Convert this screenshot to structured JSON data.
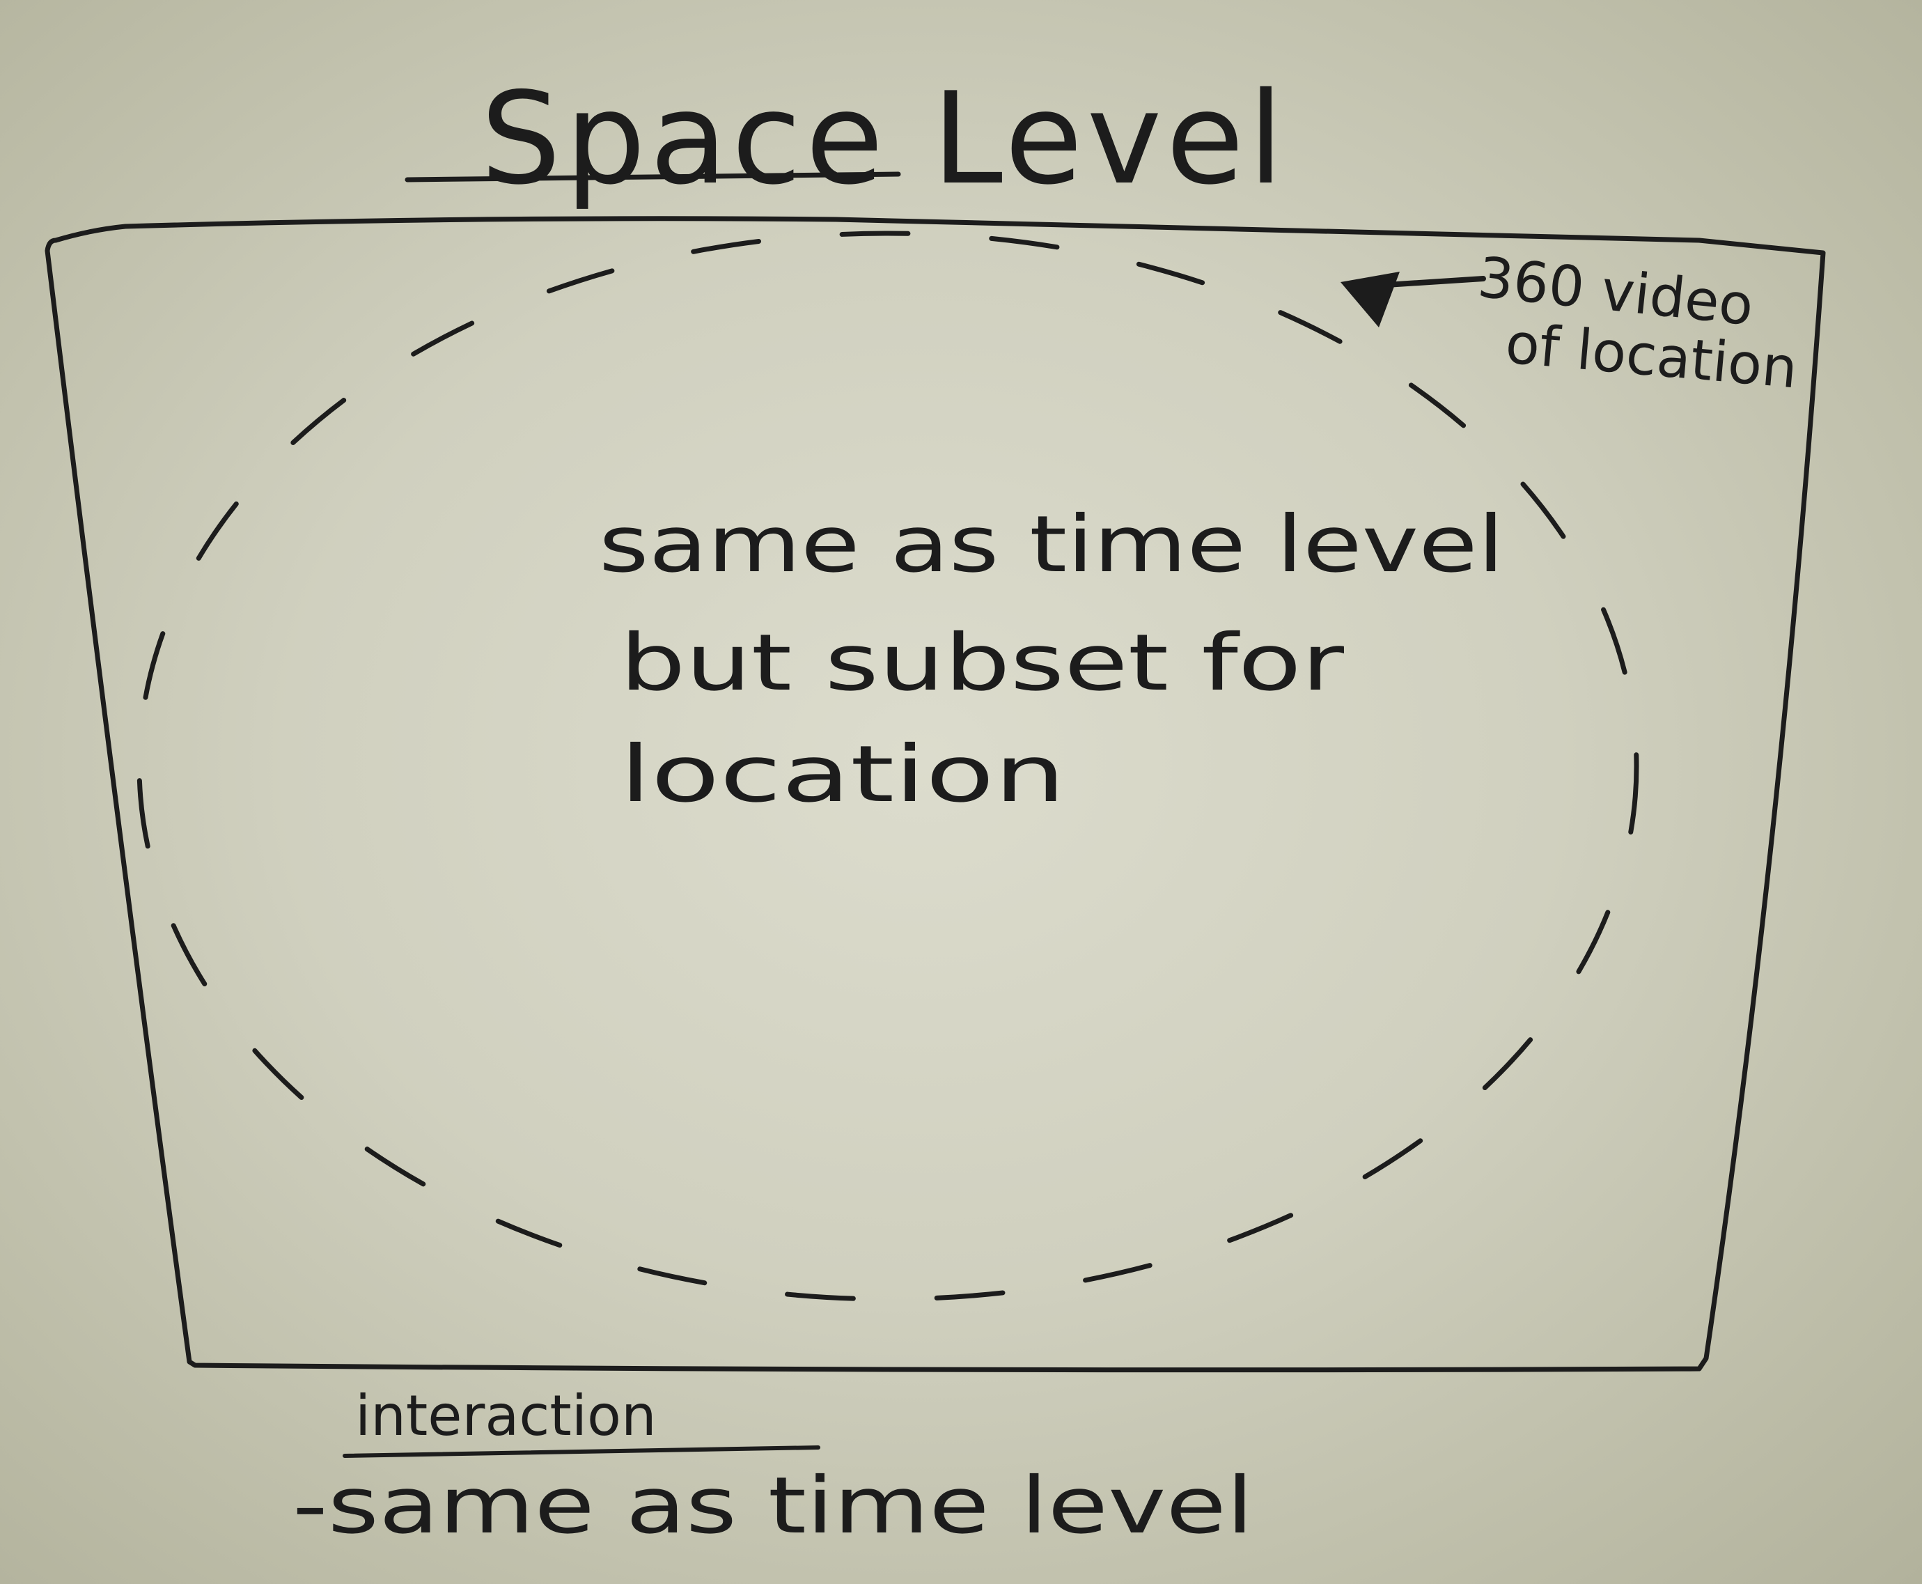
{
  "title": "Space Level",
  "frame_note": [
    "360 video",
    "of location"
  ],
  "body_text": [
    "same as time level",
    "but subset for",
    "location"
  ],
  "interaction": {
    "heading": "interaction",
    "items": [
      "-same as time level"
    ]
  }
}
